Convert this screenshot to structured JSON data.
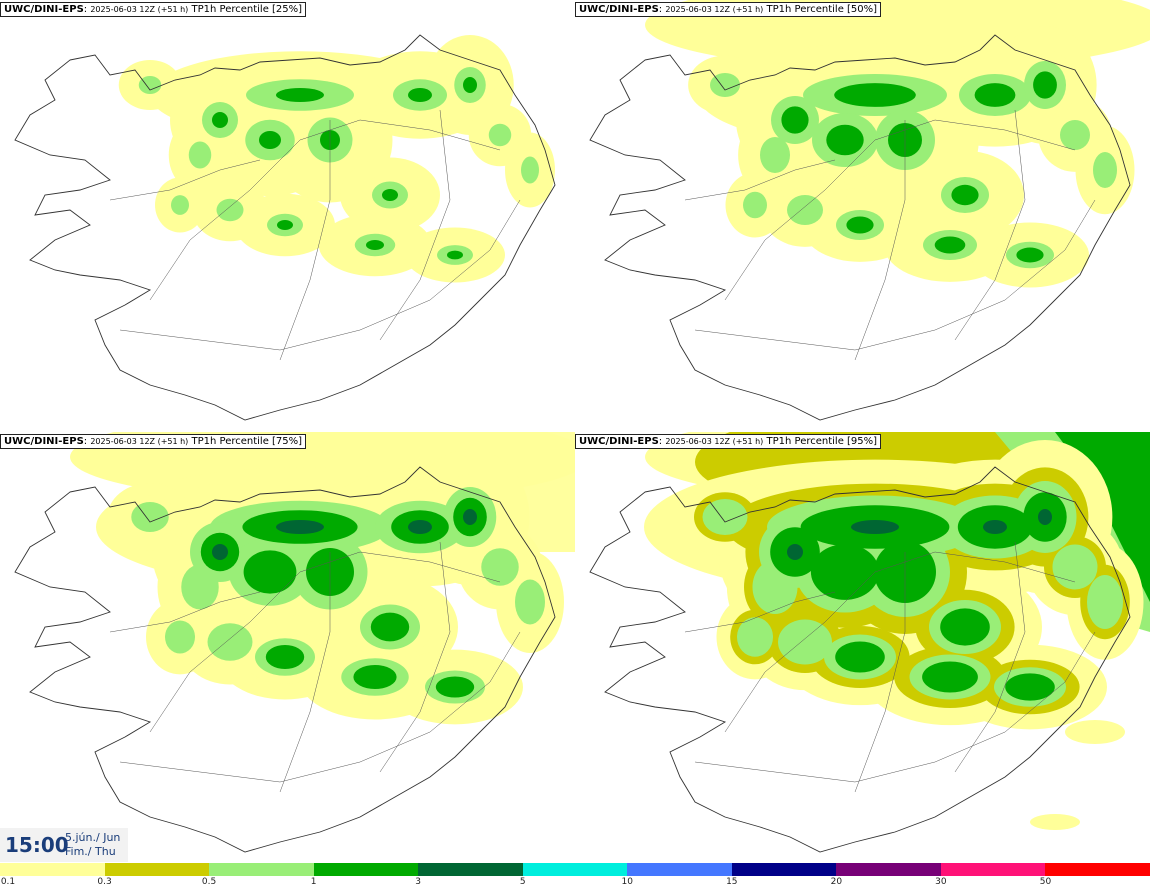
{
  "panels": [
    {
      "model": "UWC/DINI-EPS",
      "run": "2025-06-03 12Z (+51 h)",
      "field": "TP1h Percentile [25%]",
      "level": 0
    },
    {
      "model": "UWC/DINI-EPS",
      "run": "2025-06-03 12Z (+51 h)",
      "field": "TP1h Percentile [50%]",
      "level": 1
    },
    {
      "model": "UWC/DINI-EPS",
      "run": "2025-06-03 12Z (+51 h)",
      "field": "TP1h Percentile [75%]",
      "level": 2
    },
    {
      "model": "UWC/DINI-EPS",
      "run": "2025-06-03 12Z (+51 h)",
      "field": "TP1h Percentile [95%]",
      "level": 3
    }
  ],
  "valid_time": {
    "hour": "15:00",
    "date_line1": "5.jún./ Jun",
    "date_line2": "Fim./ Thu"
  },
  "legend": {
    "colors": [
      "#ffff99",
      "#cccc00",
      "#99ee77",
      "#00aa00",
      "#006633",
      "#00eedd",
      "#4477ff",
      "#000088",
      "#770077",
      "#ff1177",
      "#ff0000"
    ],
    "labels": [
      "0.1",
      "0.3",
      "0.5",
      "1",
      "3",
      "5",
      "10",
      "15",
      "20",
      "30",
      "50"
    ]
  }
}
